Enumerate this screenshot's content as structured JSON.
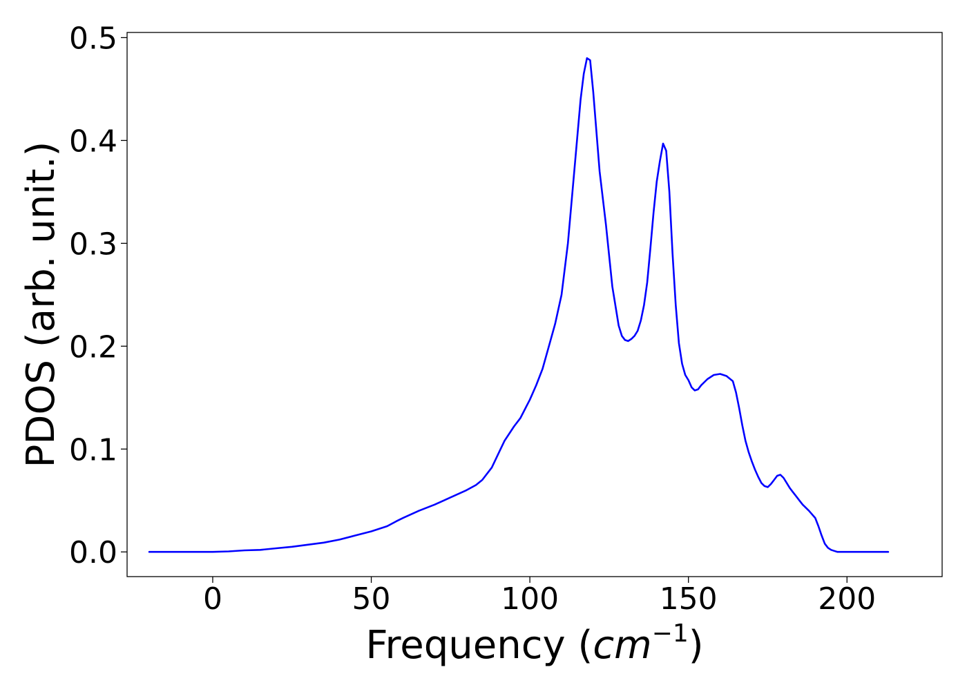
{
  "chart_data": {
    "type": "line",
    "title": "",
    "xlabel": "Frequency",
    "xlabel_unit_base": "cm",
    "xlabel_unit_exp": "−1",
    "ylabel": "PDOS (arb. unit.)",
    "xlim": [
      -27,
      230
    ],
    "ylim": [
      -0.024,
      0.505
    ],
    "xticks": [
      0,
      50,
      100,
      150,
      200
    ],
    "xtick_labels": [
      "0",
      "50",
      "100",
      "150",
      "200"
    ],
    "yticks": [
      0.0,
      0.1,
      0.2,
      0.3,
      0.4,
      0.5
    ],
    "ytick_labels": [
      "0.0",
      "0.1",
      "0.2",
      "0.3",
      "0.4",
      "0.5"
    ],
    "grid": false,
    "legend": "none",
    "series": [
      {
        "color": "#0000ff",
        "x": [
          -20,
          0,
          5,
          10,
          15,
          20,
          25,
          30,
          35,
          40,
          45,
          50,
          55,
          58,
          60,
          65,
          70,
          75,
          80,
          83,
          85,
          88,
          90,
          92,
          95,
          97,
          100,
          102,
          104,
          106,
          108,
          110,
          112,
          114,
          116,
          117,
          118,
          119,
          120,
          122,
          124,
          126,
          128,
          129,
          130,
          131,
          132,
          133,
          134,
          135,
          136,
          137,
          138,
          139,
          140,
          141,
          142,
          143,
          144,
          145,
          146,
          147,
          148,
          149,
          150,
          151,
          152,
          153,
          154,
          156,
          158,
          160,
          162,
          164,
          165,
          166,
          167,
          168,
          169,
          170,
          171,
          172,
          173,
          174,
          175,
          176,
          177,
          178,
          179,
          180,
          181,
          182,
          183,
          184,
          185,
          186,
          188,
          190,
          191,
          192,
          193,
          194,
          195,
          196,
          197,
          198,
          199,
          200,
          205,
          213
        ],
        "y": [
          0.0,
          0.0,
          0.0005,
          0.0015,
          0.002,
          0.0035,
          0.005,
          0.007,
          0.009,
          0.012,
          0.016,
          0.02,
          0.025,
          0.03,
          0.033,
          0.04,
          0.046,
          0.053,
          0.06,
          0.065,
          0.07,
          0.082,
          0.095,
          0.108,
          0.122,
          0.13,
          0.148,
          0.162,
          0.178,
          0.2,
          0.222,
          0.25,
          0.3,
          0.37,
          0.44,
          0.465,
          0.48,
          0.478,
          0.447,
          0.37,
          0.318,
          0.258,
          0.22,
          0.21,
          0.206,
          0.205,
          0.207,
          0.21,
          0.215,
          0.225,
          0.24,
          0.262,
          0.295,
          0.33,
          0.36,
          0.38,
          0.397,
          0.39,
          0.35,
          0.29,
          0.24,
          0.203,
          0.183,
          0.172,
          0.167,
          0.16,
          0.157,
          0.158,
          0.162,
          0.168,
          0.172,
          0.173,
          0.171,
          0.166,
          0.155,
          0.14,
          0.123,
          0.108,
          0.097,
          0.088,
          0.08,
          0.073,
          0.067,
          0.064,
          0.063,
          0.066,
          0.07,
          0.074,
          0.075,
          0.072,
          0.067,
          0.062,
          0.058,
          0.054,
          0.05,
          0.046,
          0.04,
          0.033,
          0.025,
          0.016,
          0.008,
          0.004,
          0.002,
          0.001,
          0.0,
          0.0,
          0.0,
          0.0,
          0.0,
          0.0
        ]
      }
    ]
  }
}
